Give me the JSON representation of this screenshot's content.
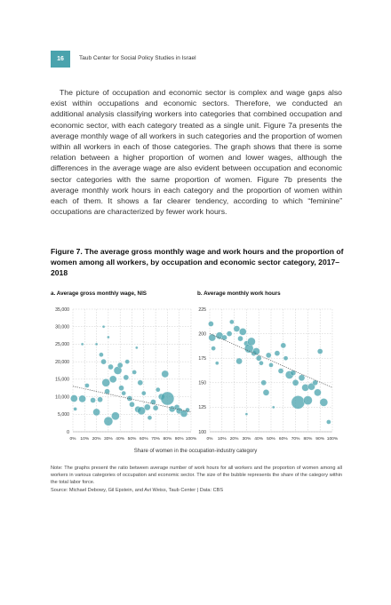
{
  "header": {
    "page_number": "16",
    "running_head": "Taub Center for Social Policy Studies in Israel"
  },
  "body": {
    "paragraph": "The picture of occupation and economic sector is complex and wage gaps also exist within occupations and economic sectors. Therefore, we conducted an additional analysis classifying workers into categories that combined occupation and economic sector, with each category treated as a single unit. Figure 7a presents the average monthly wage of all workers in such categories and the proportion of women within all workers in each of those categories. The graph shows that there is some relation between a higher proportion of women and lower wages, although the differences in the average wage are also evident between occupation and economic sector categories with the same proportion of women. Figure 7b presents the average monthly work hours in each category and the proportion of women within each of them. It shows a far clearer tendency, according to which “feminine” occupations are characterized by fewer work hours."
  },
  "figure": {
    "title": "Figure 7. The average gross monthly wage and work hours and the proportion of women among all workers, by occupation and economic sector category, 2017–2018",
    "x_caption": "Share of women in the occupation-industry category",
    "note_line": "Note: The graphs present the ratio between average number of work hours for all workers and the proportion of women among all workers in various categories of occupation and economic sector. The size of the bubble represents the share of the category within the total labor force.",
    "source_line": "Source: Michael Debowy, Gil Epstein, and Avi Weiss, Taub Center | Data: CBS"
  },
  "chart_data": [
    {
      "type": "scatter",
      "title": "a. Average gross monthly wage, NIS",
      "xlabel": "Share of women in the occupation-industry category",
      "ylabel": "",
      "x_ticks": [
        "0%",
        "10%",
        "20%",
        "30%",
        "40%",
        "50%",
        "60%",
        "70%",
        "80%",
        "90%",
        "100%"
      ],
      "y_ticks": [
        "0",
        "5,000",
        "10,000",
        "15,000",
        "20,000",
        "25,000",
        "30,000",
        "35,000"
      ],
      "xlim": [
        0,
        100
      ],
      "ylim": [
        0,
        35000
      ],
      "grid": true,
      "bubble_color": "#4aa3ad",
      "trendline": {
        "x": [
          0,
          100
        ],
        "y": [
          13000,
          5600
        ]
      },
      "points": [
        {
          "x": 1,
          "y": 9500,
          "s": 4
        },
        {
          "x": 2,
          "y": 6500,
          "s": 2
        },
        {
          "x": 8,
          "y": 9400,
          "s": 4
        },
        {
          "x": 12,
          "y": 13200,
          "s": 2.5
        },
        {
          "x": 17,
          "y": 9000,
          "s": 3
        },
        {
          "x": 20,
          "y": 5600,
          "s": 4
        },
        {
          "x": 23,
          "y": 9200,
          "s": 3
        },
        {
          "x": 24,
          "y": 22000,
          "s": 2.5
        },
        {
          "x": 26,
          "y": 20000,
          "s": 3
        },
        {
          "x": 28,
          "y": 14000,
          "s": 4.5
        },
        {
          "x": 29,
          "y": 11500,
          "s": 3
        },
        {
          "x": 30,
          "y": 3000,
          "s": 5
        },
        {
          "x": 32,
          "y": 18500,
          "s": 3
        },
        {
          "x": 34,
          "y": 15000,
          "s": 4
        },
        {
          "x": 36,
          "y": 4500,
          "s": 4.5
        },
        {
          "x": 38,
          "y": 17500,
          "s": 4.5
        },
        {
          "x": 40,
          "y": 19000,
          "s": 3
        },
        {
          "x": 41,
          "y": 12500,
          "s": 3
        },
        {
          "x": 43,
          "y": 11000,
          "s": 2.5
        },
        {
          "x": 45,
          "y": 15500,
          "s": 3
        },
        {
          "x": 46,
          "y": 20000,
          "s": 2.5
        },
        {
          "x": 48,
          "y": 9500,
          "s": 3
        },
        {
          "x": 50,
          "y": 7800,
          "s": 3
        },
        {
          "x": 52,
          "y": 17000,
          "s": 2.5
        },
        {
          "x": 55,
          "y": 6400,
          "s": 3.5
        },
        {
          "x": 57,
          "y": 14000,
          "s": 3
        },
        {
          "x": 58,
          "y": 6000,
          "s": 4.5
        },
        {
          "x": 60,
          "y": 11000,
          "s": 2.5
        },
        {
          "x": 63,
          "y": 7000,
          "s": 3.5
        },
        {
          "x": 65,
          "y": 4000,
          "s": 2.5
        },
        {
          "x": 68,
          "y": 8500,
          "s": 3
        },
        {
          "x": 70,
          "y": 6800,
          "s": 3
        },
        {
          "x": 72,
          "y": 12000,
          "s": 2.5
        },
        {
          "x": 75,
          "y": 10000,
          "s": 3.5
        },
        {
          "x": 78,
          "y": 16500,
          "s": 4
        },
        {
          "x": 80,
          "y": 9500,
          "s": 7.5
        },
        {
          "x": 84,
          "y": 6500,
          "s": 3.5
        },
        {
          "x": 88,
          "y": 7000,
          "s": 3
        },
        {
          "x": 90,
          "y": 6000,
          "s": 3.5
        },
        {
          "x": 94,
          "y": 5200,
          "s": 4
        },
        {
          "x": 97,
          "y": 6200,
          "s": 2.5
        },
        {
          "x": 20,
          "y": 25000,
          "s": 1.5
        },
        {
          "x": 26,
          "y": 30000,
          "s": 1.5
        },
        {
          "x": 30,
          "y": 27000,
          "s": 1.5
        },
        {
          "x": 54,
          "y": 24000,
          "s": 1.5
        },
        {
          "x": 8,
          "y": 25000,
          "s": 1.5
        }
      ]
    },
    {
      "type": "scatter",
      "title": "b. Average monthly work hours",
      "xlabel": "Share of women in the occupation-industry category",
      "ylabel": "",
      "x_ticks": [
        "0%",
        "10%",
        "20%",
        "30%",
        "40%",
        "50%",
        "60%",
        "70%",
        "80%",
        "90%",
        "100%"
      ],
      "y_ticks": [
        "100",
        "125",
        "150",
        "175",
        "200",
        "225"
      ],
      "xlim": [
        0,
        100
      ],
      "ylim": [
        100,
        225
      ],
      "grid": true,
      "bubble_color": "#4aa3ad",
      "trendline": {
        "x": [
          0,
          100
        ],
        "y": [
          200,
          145
        ]
      },
      "points": [
        {
          "x": 1,
          "y": 210,
          "s": 3
        },
        {
          "x": 2,
          "y": 196,
          "s": 4
        },
        {
          "x": 3,
          "y": 185,
          "s": 2.5
        },
        {
          "x": 8,
          "y": 198,
          "s": 4
        },
        {
          "x": 12,
          "y": 196,
          "s": 3
        },
        {
          "x": 16,
          "y": 200,
          "s": 3
        },
        {
          "x": 18,
          "y": 212,
          "s": 2.5
        },
        {
          "x": 22,
          "y": 205,
          "s": 3.5
        },
        {
          "x": 25,
          "y": 195,
          "s": 3
        },
        {
          "x": 27,
          "y": 202,
          "s": 4
        },
        {
          "x": 30,
          "y": 190,
          "s": 3
        },
        {
          "x": 32,
          "y": 185,
          "s": 5
        },
        {
          "x": 34,
          "y": 192,
          "s": 4.5
        },
        {
          "x": 36,
          "y": 180,
          "s": 3
        },
        {
          "x": 38,
          "y": 182,
          "s": 4
        },
        {
          "x": 40,
          "y": 175,
          "s": 3
        },
        {
          "x": 42,
          "y": 170,
          "s": 2.5
        },
        {
          "x": 44,
          "y": 150,
          "s": 3
        },
        {
          "x": 46,
          "y": 140,
          "s": 3.5
        },
        {
          "x": 48,
          "y": 178,
          "s": 3
        },
        {
          "x": 50,
          "y": 168,
          "s": 2.5
        },
        {
          "x": 55,
          "y": 180,
          "s": 3
        },
        {
          "x": 58,
          "y": 162,
          "s": 3
        },
        {
          "x": 60,
          "y": 188,
          "s": 3
        },
        {
          "x": 62,
          "y": 175,
          "s": 2.5
        },
        {
          "x": 65,
          "y": 158,
          "s": 4.5
        },
        {
          "x": 68,
          "y": 160,
          "s": 3
        },
        {
          "x": 70,
          "y": 150,
          "s": 3.5
        },
        {
          "x": 72,
          "y": 130,
          "s": 7.5
        },
        {
          "x": 75,
          "y": 155,
          "s": 3.5
        },
        {
          "x": 78,
          "y": 145,
          "s": 4
        },
        {
          "x": 80,
          "y": 132,
          "s": 5
        },
        {
          "x": 83,
          "y": 146,
          "s": 4
        },
        {
          "x": 86,
          "y": 150,
          "s": 3
        },
        {
          "x": 88,
          "y": 140,
          "s": 4
        },
        {
          "x": 90,
          "y": 182,
          "s": 3
        },
        {
          "x": 93,
          "y": 130,
          "s": 4.5
        },
        {
          "x": 97,
          "y": 110,
          "s": 2.5
        },
        {
          "x": 24,
          "y": 172,
          "s": 3.5
        },
        {
          "x": 6,
          "y": 170,
          "s": 2
        },
        {
          "x": 52,
          "y": 125,
          "s": 1.5
        },
        {
          "x": 30,
          "y": 118,
          "s": 1.5
        }
      ]
    }
  ]
}
